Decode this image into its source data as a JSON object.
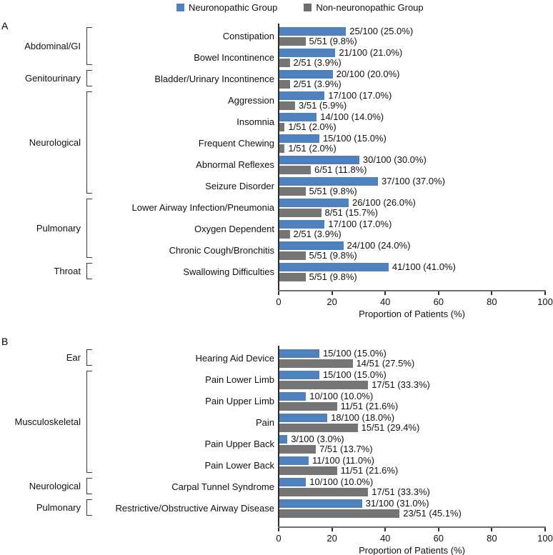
{
  "legend": {
    "items": [
      {
        "label": "Neuronopathic Group",
        "color": "#4e81bd"
      },
      {
        "label": "Non-neuronopathic Group",
        "color": "#6e6e6e"
      }
    ]
  },
  "colors": {
    "neuronopathic": "#4e81bd",
    "non_neuronopathic": "#757575",
    "axis": "#6d6d6d",
    "text": "#111111"
  },
  "chart_data": [
    {
      "type": "bar",
      "orientation": "horizontal",
      "panel_label": "A",
      "xlabel": "Proportion of Patients (%)",
      "xlim": [
        0,
        100
      ],
      "xticks": [
        0,
        20,
        40,
        60,
        80,
        100
      ],
      "series": [
        "Neuronopathic Group",
        "Non-neuronopathic Group"
      ],
      "legend_position": "top",
      "groups": [
        {
          "category": "Abdominal/GI",
          "items": [
            {
              "label": "Constipation",
              "neuronopathic": {
                "pct": 25.0,
                "annotation": "25/100 (25.0%)"
              },
              "non_neuronopathic": {
                "pct": 9.8,
                "annotation": "5/51 (9.8%)"
              }
            },
            {
              "label": "Bowel Incontinence",
              "neuronopathic": {
                "pct": 21.0,
                "annotation": "21/100 (21.0%)"
              },
              "non_neuronopathic": {
                "pct": 3.9,
                "annotation": "2/51 (3.9%)"
              }
            }
          ]
        },
        {
          "category": "Genitourinary",
          "items": [
            {
              "label": "Bladder/Urinary Incontinence",
              "neuronopathic": {
                "pct": 20.0,
                "annotation": "20/100 (20.0%)"
              },
              "non_neuronopathic": {
                "pct": 3.9,
                "annotation": "2/51 (3.9%)"
              }
            }
          ]
        },
        {
          "category": "Neurological",
          "items": [
            {
              "label": "Aggression",
              "neuronopathic": {
                "pct": 17.0,
                "annotation": "17/100 (17.0%)"
              },
              "non_neuronopathic": {
                "pct": 5.9,
                "annotation": "3/51 (5.9%)"
              }
            },
            {
              "label": "Insomnia",
              "neuronopathic": {
                "pct": 14.0,
                "annotation": "14/100 (14.0%)"
              },
              "non_neuronopathic": {
                "pct": 2.0,
                "annotation": "1/51 (2.0%)"
              }
            },
            {
              "label": "Frequent Chewing",
              "neuronopathic": {
                "pct": 15.0,
                "annotation": "15/100 (15.0%)"
              },
              "non_neuronopathic": {
                "pct": 2.0,
                "annotation": "1/51 (2.0%)"
              }
            },
            {
              "label": "Abnormal Reflexes",
              "neuronopathic": {
                "pct": 30.0,
                "annotation": "30/100 (30.0%)"
              },
              "non_neuronopathic": {
                "pct": 11.8,
                "annotation": "6/51 (11.8%)"
              }
            },
            {
              "label": "Seizure Disorder",
              "neuronopathic": {
                "pct": 37.0,
                "annotation": "37/100 (37.0%)"
              },
              "non_neuronopathic": {
                "pct": 9.8,
                "annotation": "5/51 (9.8%)"
              }
            }
          ]
        },
        {
          "category": "Pulmonary",
          "items": [
            {
              "label": "Lower Airway Infection/Pneumonia",
              "neuronopathic": {
                "pct": 26.0,
                "annotation": "26/100 (26.0%)"
              },
              "non_neuronopathic": {
                "pct": 15.7,
                "annotation": "8/51 (15.7%)"
              }
            },
            {
              "label": "Oxygen Dependent",
              "neuronopathic": {
                "pct": 17.0,
                "annotation": "17/100 (17.0%)"
              },
              "non_neuronopathic": {
                "pct": 3.9,
                "annotation": "2/51 (3.9%)"
              }
            },
            {
              "label": "Chronic Cough/Bronchitis",
              "neuronopathic": {
                "pct": 24.0,
                "annotation": "24/100 (24.0%)"
              },
              "non_neuronopathic": {
                "pct": 9.8,
                "annotation": "5/51 (9.8%)"
              }
            }
          ]
        },
        {
          "category": "Throat",
          "items": [
            {
              "label": "Swallowing Difficulties",
              "neuronopathic": {
                "pct": 41.0,
                "annotation": "41/100 (41.0%)"
              },
              "non_neuronopathic": {
                "pct": 9.8,
                "annotation": "5/51 (9.8%)"
              }
            }
          ]
        }
      ]
    },
    {
      "type": "bar",
      "orientation": "horizontal",
      "panel_label": "B",
      "xlabel": "Proportion of Patients (%)",
      "xlim": [
        0,
        100
      ],
      "xticks": [
        0,
        20,
        40,
        60,
        80,
        100
      ],
      "series": [
        "Neuronopathic Group",
        "Non-neuronopathic Group"
      ],
      "legend_position": "top",
      "groups": [
        {
          "category": "Ear",
          "items": [
            {
              "label": "Hearing Aid Device",
              "neuronopathic": {
                "pct": 15.0,
                "annotation": "15/100 (15.0%)"
              },
              "non_neuronopathic": {
                "pct": 27.5,
                "annotation": "14/51 (27.5%)"
              }
            }
          ]
        },
        {
          "category": "Musculoskeletal",
          "items": [
            {
              "label": "Pain Lower Limb",
              "neuronopathic": {
                "pct": 15.0,
                "annotation": "15/100 (15.0%)"
              },
              "non_neuronopathic": {
                "pct": 33.3,
                "annotation": "17/51 (33.3%)"
              }
            },
            {
              "label": "Pain Upper Limb",
              "neuronopathic": {
                "pct": 10.0,
                "annotation": "10/100 (10.0%)"
              },
              "non_neuronopathic": {
                "pct": 21.6,
                "annotation": "11/51 (21.6%)"
              }
            },
            {
              "label": "Pain",
              "neuronopathic": {
                "pct": 18.0,
                "annotation": "18/100 (18.0%)"
              },
              "non_neuronopathic": {
                "pct": 29.4,
                "annotation": "15/51 (29.4%)"
              }
            },
            {
              "label": "Pain Upper Back",
              "neuronopathic": {
                "pct": 3.0,
                "annotation": "3/100 (3.0%)"
              },
              "non_neuronopathic": {
                "pct": 13.7,
                "annotation": "7/51 (13.7%)"
              }
            },
            {
              "label": "Pain Lower Back",
              "neuronopathic": {
                "pct": 11.0,
                "annotation": "11/100 (11.0%)"
              },
              "non_neuronopathic": {
                "pct": 21.6,
                "annotation": "11/51 (21.6%)"
              }
            }
          ]
        },
        {
          "category": "Neurological",
          "items": [
            {
              "label": "Carpal Tunnel Syndrome",
              "neuronopathic": {
                "pct": 10.0,
                "annotation": "10/100 (10.0%)"
              },
              "non_neuronopathic": {
                "pct": 33.3,
                "annotation": "17/51 (33.3%)"
              }
            }
          ]
        },
        {
          "category": "Pulmonary",
          "items": [
            {
              "label": "Restrictive/Obstructive Airway Disease",
              "neuronopathic": {
                "pct": 31.0,
                "annotation": "31/100 (31.0%)"
              },
              "non_neuronopathic": {
                "pct": 45.1,
                "annotation": "23/51 (45.1%)"
              }
            }
          ]
        }
      ]
    }
  ]
}
